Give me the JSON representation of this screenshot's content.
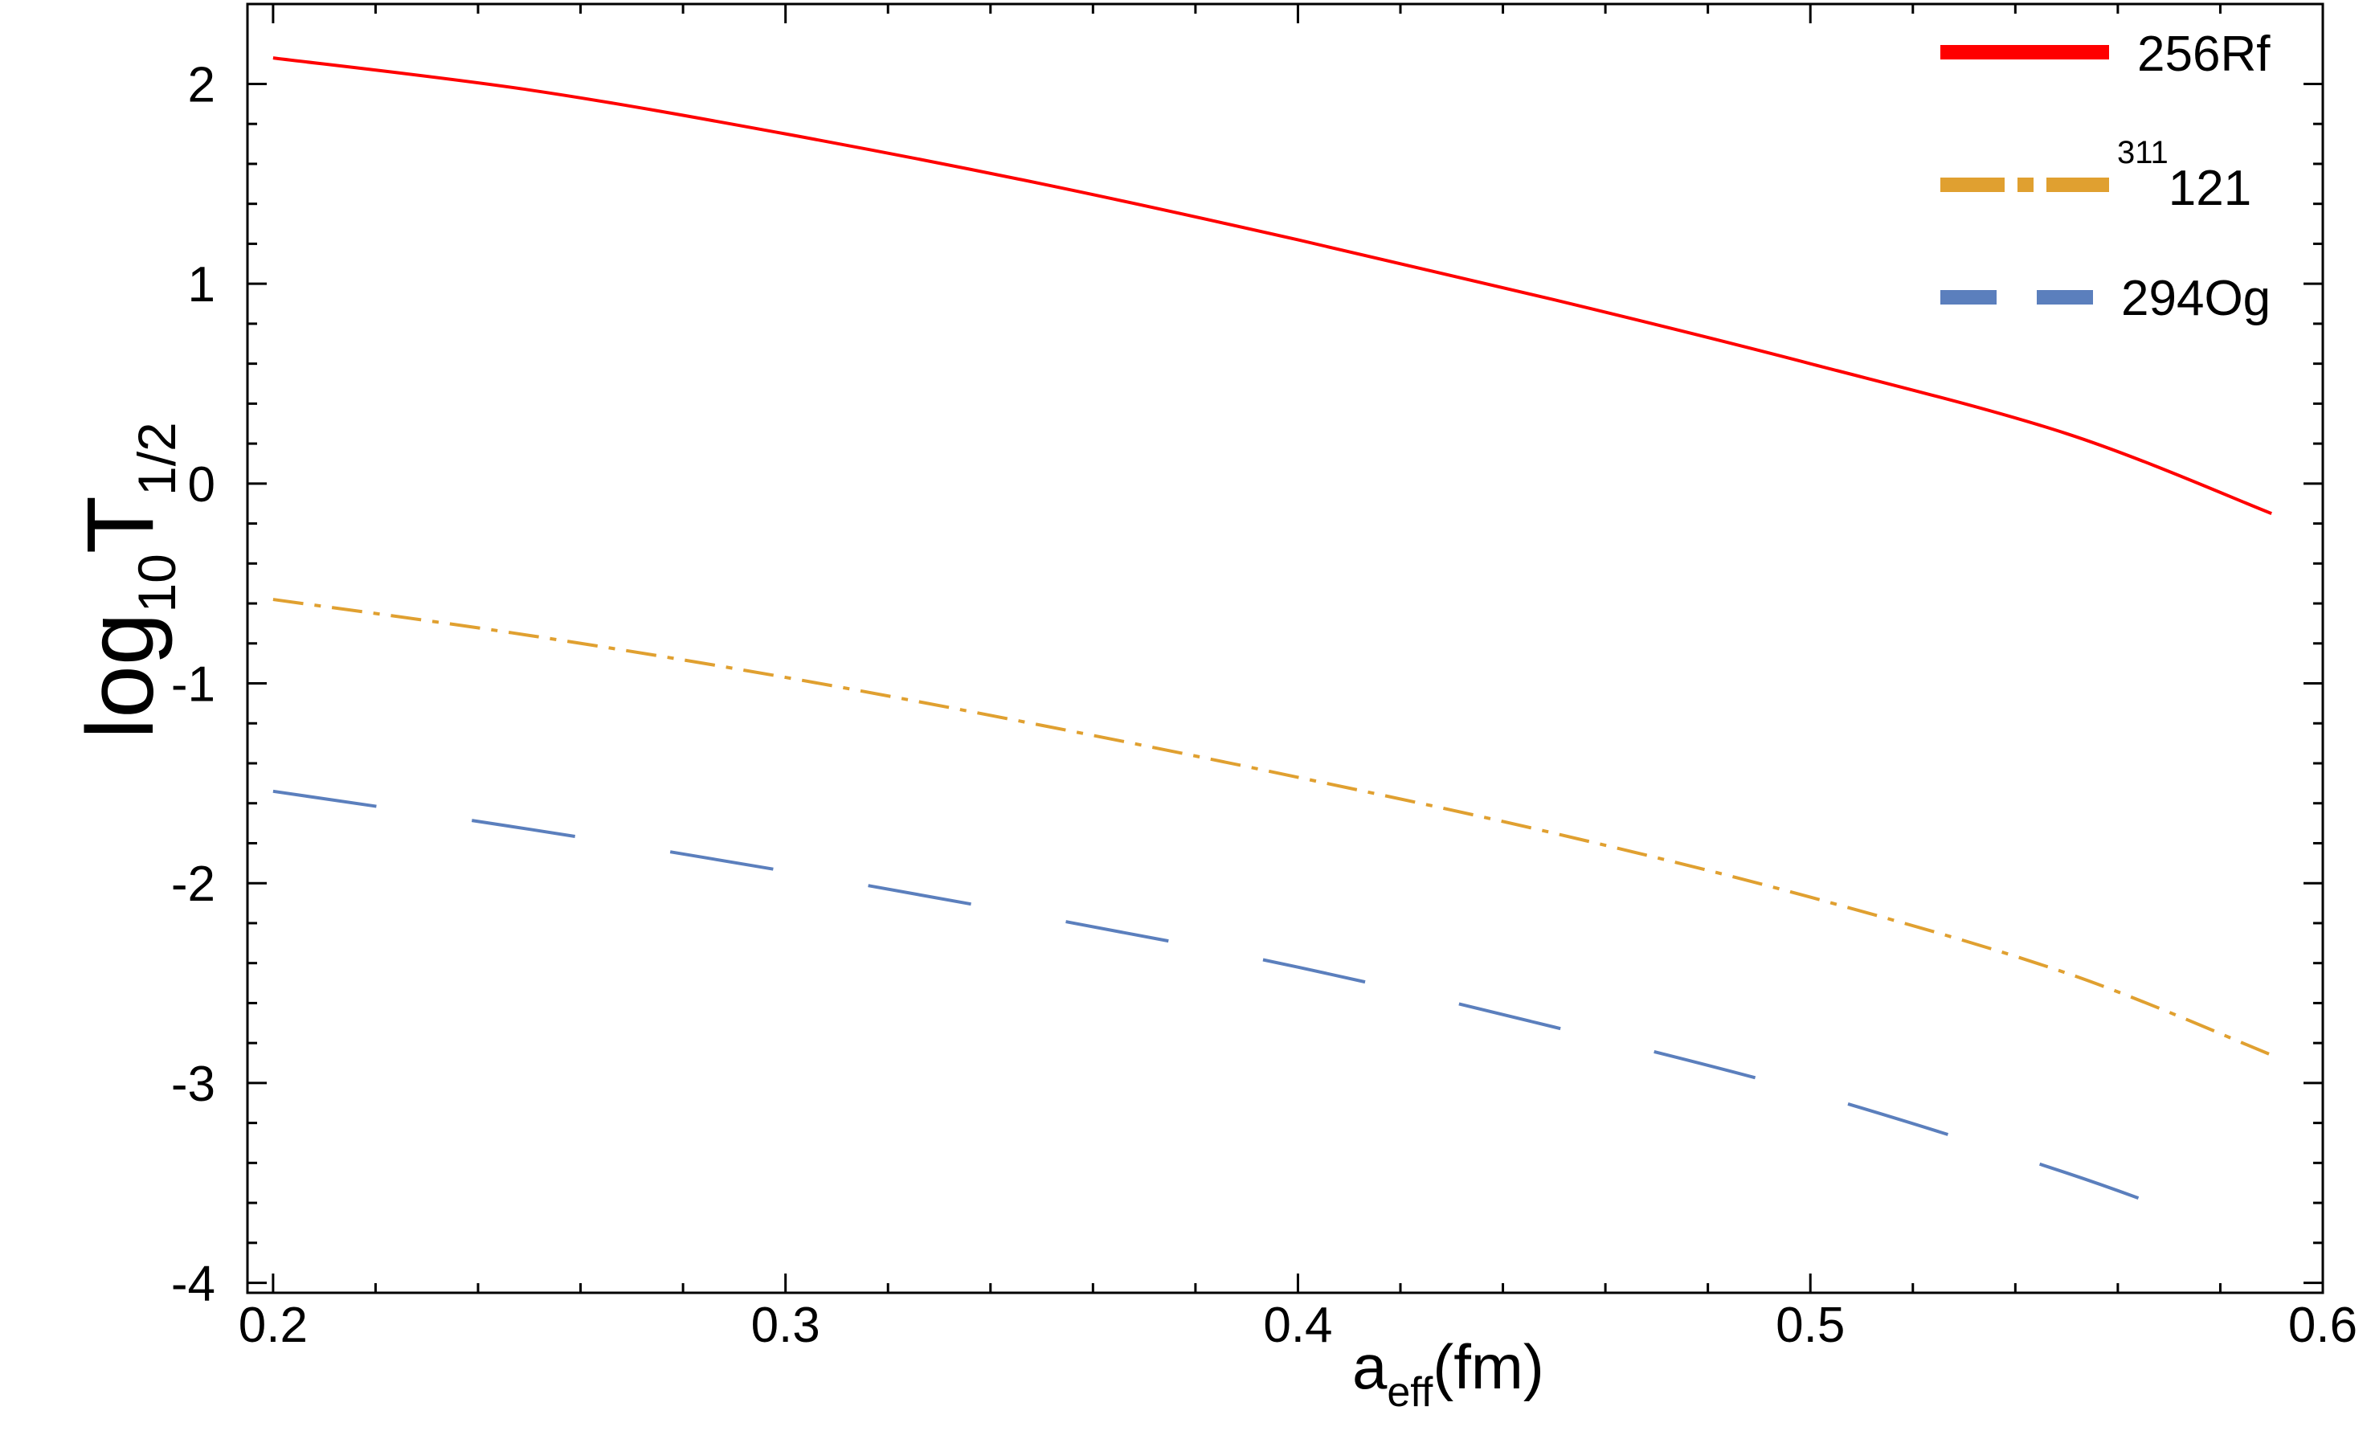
{
  "chart_data": {
    "type": "line",
    "title": "",
    "xlabel": {
      "main": "a",
      "sub": "eff",
      "tail": "(fm)"
    },
    "ylabel": {
      "pre": "log",
      "sub1": "10",
      "main": "T",
      "sub2": "1/2"
    },
    "xlim": [
      0.195,
      0.6
    ],
    "ylim": [
      -4.05,
      2.4
    ],
    "xticks": [
      0.2,
      0.3,
      0.4,
      0.5,
      0.6
    ],
    "xtick_labels": [
      "0.2",
      "0.3",
      "0.4",
      "0.5",
      "0.6"
    ],
    "yticks": [
      -4,
      -3,
      -2,
      -1,
      0,
      1,
      2
    ],
    "ytick_labels": [
      "-4",
      "-3",
      "-2",
      "-1",
      "0",
      "1",
      "2"
    ],
    "grid": false,
    "legend_position": "top-right",
    "series": [
      {
        "name": "256Rf",
        "color": "#ff0000",
        "style": "solid",
        "x": [
          0.2,
          0.25,
          0.3,
          0.35,
          0.4,
          0.45,
          0.5,
          0.55,
          0.59
        ],
        "y": [
          2.13,
          1.97,
          1.75,
          1.5,
          1.22,
          0.92,
          0.6,
          0.25,
          -0.15
        ]
      },
      {
        "name": "121",
        "name_sup": "311",
        "color": "#e0a030",
        "style": "dashdot",
        "x": [
          0.2,
          0.25,
          0.3,
          0.35,
          0.4,
          0.45,
          0.5,
          0.55,
          0.59
        ],
        "y": [
          -0.58,
          -0.76,
          -0.97,
          -1.21,
          -1.47,
          -1.75,
          -2.07,
          -2.45,
          -2.86
        ]
      },
      {
        "name": "294Og",
        "color": "#5b7fbd",
        "style": "dashed",
        "x": [
          0.2,
          0.25,
          0.3,
          0.35,
          0.4,
          0.45,
          0.5,
          0.55,
          0.58
        ],
        "y": [
          -1.54,
          -1.73,
          -1.94,
          -2.17,
          -2.42,
          -2.72,
          -3.05,
          -3.45,
          -3.73
        ]
      }
    ]
  }
}
